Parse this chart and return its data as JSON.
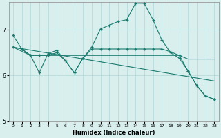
{
  "xlabel": "Humidex (Indice chaleur)",
  "bg_color": "#d8efee",
  "grid_color": "#b0d8d8",
  "line_color": "#1a7a6e",
  "xlim": [
    -0.5,
    23.5
  ],
  "ylim": [
    5.0,
    7.6
  ],
  "yticks": [
    5,
    6,
    7
  ],
  "xticks": [
    0,
    1,
    2,
    3,
    4,
    5,
    6,
    7,
    8,
    9,
    10,
    11,
    12,
    13,
    14,
    15,
    16,
    17,
    18,
    19,
    20,
    21,
    22,
    23
  ],
  "line1_x": [
    0,
    1,
    2,
    3,
    4,
    5,
    6,
    7,
    8,
    9,
    10,
    11,
    12,
    13,
    14,
    15,
    16,
    17,
    18,
    19,
    20,
    21,
    22,
    23
  ],
  "line1_y": [
    6.88,
    6.58,
    6.44,
    6.06,
    6.48,
    6.55,
    6.32,
    6.06,
    6.38,
    6.62,
    7.02,
    7.1,
    7.18,
    7.22,
    7.58,
    7.58,
    7.22,
    6.78,
    6.5,
    6.38,
    6.1,
    5.78,
    5.55,
    5.48
  ],
  "line2_x": [
    0,
    2,
    3,
    4,
    5,
    6,
    7,
    8,
    9,
    10,
    11,
    12,
    13,
    14,
    15,
    16,
    17,
    18,
    19,
    20,
    21,
    22,
    23
  ],
  "line2_y": [
    6.62,
    6.44,
    6.44,
    6.44,
    6.44,
    6.44,
    6.44,
    6.44,
    6.44,
    6.44,
    6.44,
    6.44,
    6.44,
    6.44,
    6.44,
    6.44,
    6.44,
    6.44,
    6.44,
    6.36,
    6.36,
    6.36,
    6.36
  ],
  "line3_x": [
    0,
    23
  ],
  "line3_y": [
    6.62,
    5.88
  ],
  "line4_x": [
    0,
    1,
    2,
    3,
    4,
    5,
    6,
    7,
    8,
    9,
    10,
    11,
    12,
    13,
    14,
    15,
    16,
    17,
    18,
    19,
    20,
    21,
    22,
    23
  ],
  "line4_y": [
    6.62,
    6.58,
    6.44,
    6.44,
    6.44,
    6.5,
    6.32,
    6.06,
    6.38,
    6.58,
    6.58,
    6.58,
    6.58,
    6.58,
    6.58,
    6.58,
    6.58,
    6.58,
    6.52,
    6.44,
    6.1,
    5.78,
    5.55,
    5.48
  ]
}
